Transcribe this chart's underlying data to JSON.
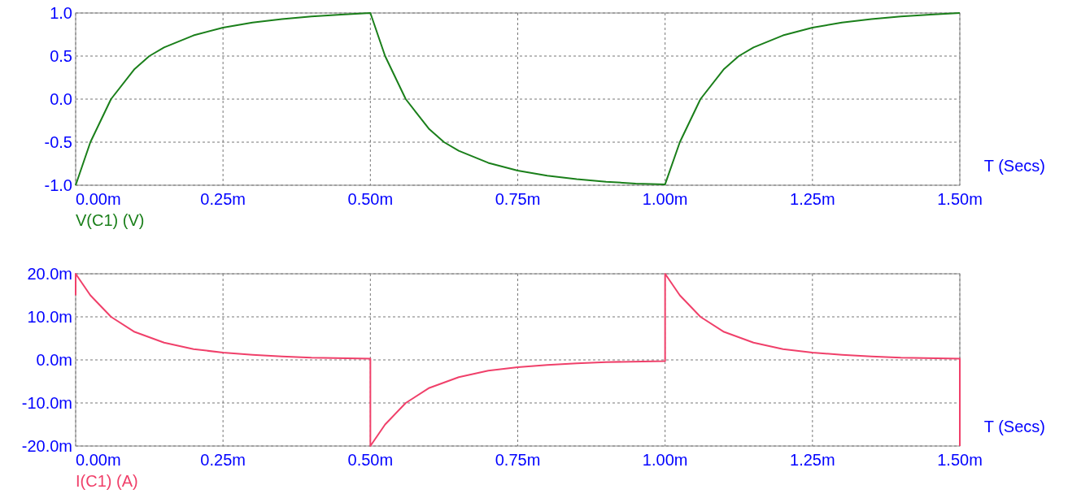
{
  "chart_data": [
    {
      "type": "line",
      "xlabel": "T (Secs)",
      "xlim": [
        0,
        1.5
      ],
      "ylim": [
        -1,
        1
      ],
      "xticks": [
        {
          "value": 0,
          "label": "0.00m"
        },
        {
          "value": 0.25,
          "label": "0.25m"
        },
        {
          "value": 0.5,
          "label": "0.50m"
        },
        {
          "value": 0.75,
          "label": "0.75m"
        },
        {
          "value": 1,
          "label": "1.00m"
        },
        {
          "value": 1.25,
          "label": "1.25m"
        },
        {
          "value": 1.5,
          "label": "1.50m"
        }
      ],
      "yticks": [
        {
          "value": -1,
          "label": "-1.0"
        },
        {
          "value": -0.5,
          "label": "-0.5"
        },
        {
          "value": 0,
          "label": "0.0"
        },
        {
          "value": 0.5,
          "label": "0.5"
        },
        {
          "value": 1,
          "label": "1.0"
        }
      ],
      "grid": true,
      "line_style": "solid",
      "series": [
        {
          "name": "V(C1) (V)",
          "color": "#1a7f1a",
          "x": [
            0,
            0.025,
            0.06,
            0.1,
            0.125,
            0.15,
            0.2,
            0.25,
            0.3,
            0.35,
            0.4,
            0.45,
            0.5,
            0.525,
            0.56,
            0.6,
            0.625,
            0.65,
            0.7,
            0.75,
            0.8,
            0.85,
            0.9,
            0.95,
            1,
            1.025,
            1.06,
            1.1,
            1.125,
            1.15,
            1.2,
            1.25,
            1.3,
            1.35,
            1.4,
            1.45,
            1.5
          ],
          "values": [
            -1,
            -0.5,
            0,
            0.35,
            0.5,
            0.6,
            0.74,
            0.83,
            0.89,
            0.93,
            0.96,
            0.98,
            1,
            0.5,
            0,
            -0.35,
            -0.5,
            -0.6,
            -0.74,
            -0.83,
            -0.89,
            -0.93,
            -0.96,
            -0.98,
            -0.99,
            -0.5,
            0,
            0.35,
            0.5,
            0.6,
            0.74,
            0.83,
            0.89,
            0.93,
            0.96,
            0.98,
            1
          ]
        }
      ]
    },
    {
      "type": "line",
      "xlabel": "T (Secs)",
      "xlim": [
        0,
        1.5
      ],
      "ylim": [
        -20,
        20
      ],
      "xticks": [
        {
          "value": 0,
          "label": "0.00m"
        },
        {
          "value": 0.25,
          "label": "0.25m"
        },
        {
          "value": 0.5,
          "label": "0.50m"
        },
        {
          "value": 0.75,
          "label": "0.75m"
        },
        {
          "value": 1,
          "label": "1.00m"
        },
        {
          "value": 1.25,
          "label": "1.25m"
        },
        {
          "value": 1.5,
          "label": "1.50m"
        }
      ],
      "yticks": [
        {
          "value": -20,
          "label": "-20.0m"
        },
        {
          "value": -10,
          "label": "-10.0m"
        },
        {
          "value": 0,
          "label": "0.0m"
        },
        {
          "value": 10,
          "label": "10.0m"
        },
        {
          "value": 20,
          "label": "20.0m"
        }
      ],
      "grid": true,
      "line_style": "solid",
      "series": [
        {
          "name": "I(C1) (A)",
          "color": "#f0406a",
          "x": [
            0,
            0,
            0.025,
            0.06,
            0.1,
            0.15,
            0.2,
            0.25,
            0.3,
            0.35,
            0.4,
            0.5,
            0.5,
            0.525,
            0.56,
            0.6,
            0.65,
            0.7,
            0.75,
            0.8,
            0.85,
            0.9,
            1,
            1,
            1.025,
            1.06,
            1.1,
            1.15,
            1.2,
            1.25,
            1.3,
            1.35,
            1.4,
            1.5,
            1.5
          ],
          "values": [
            15,
            20,
            15,
            10,
            6.5,
            4,
            2.5,
            1.7,
            1.2,
            0.8,
            0.5,
            0.3,
            -20,
            -15,
            -10,
            -6.5,
            -4,
            -2.5,
            -1.7,
            -1.2,
            -0.8,
            -0.5,
            -0.3,
            20,
            15,
            10,
            6.5,
            4,
            2.5,
            1.7,
            1.2,
            0.8,
            0.5,
            0.3,
            -20
          ]
        }
      ]
    }
  ]
}
